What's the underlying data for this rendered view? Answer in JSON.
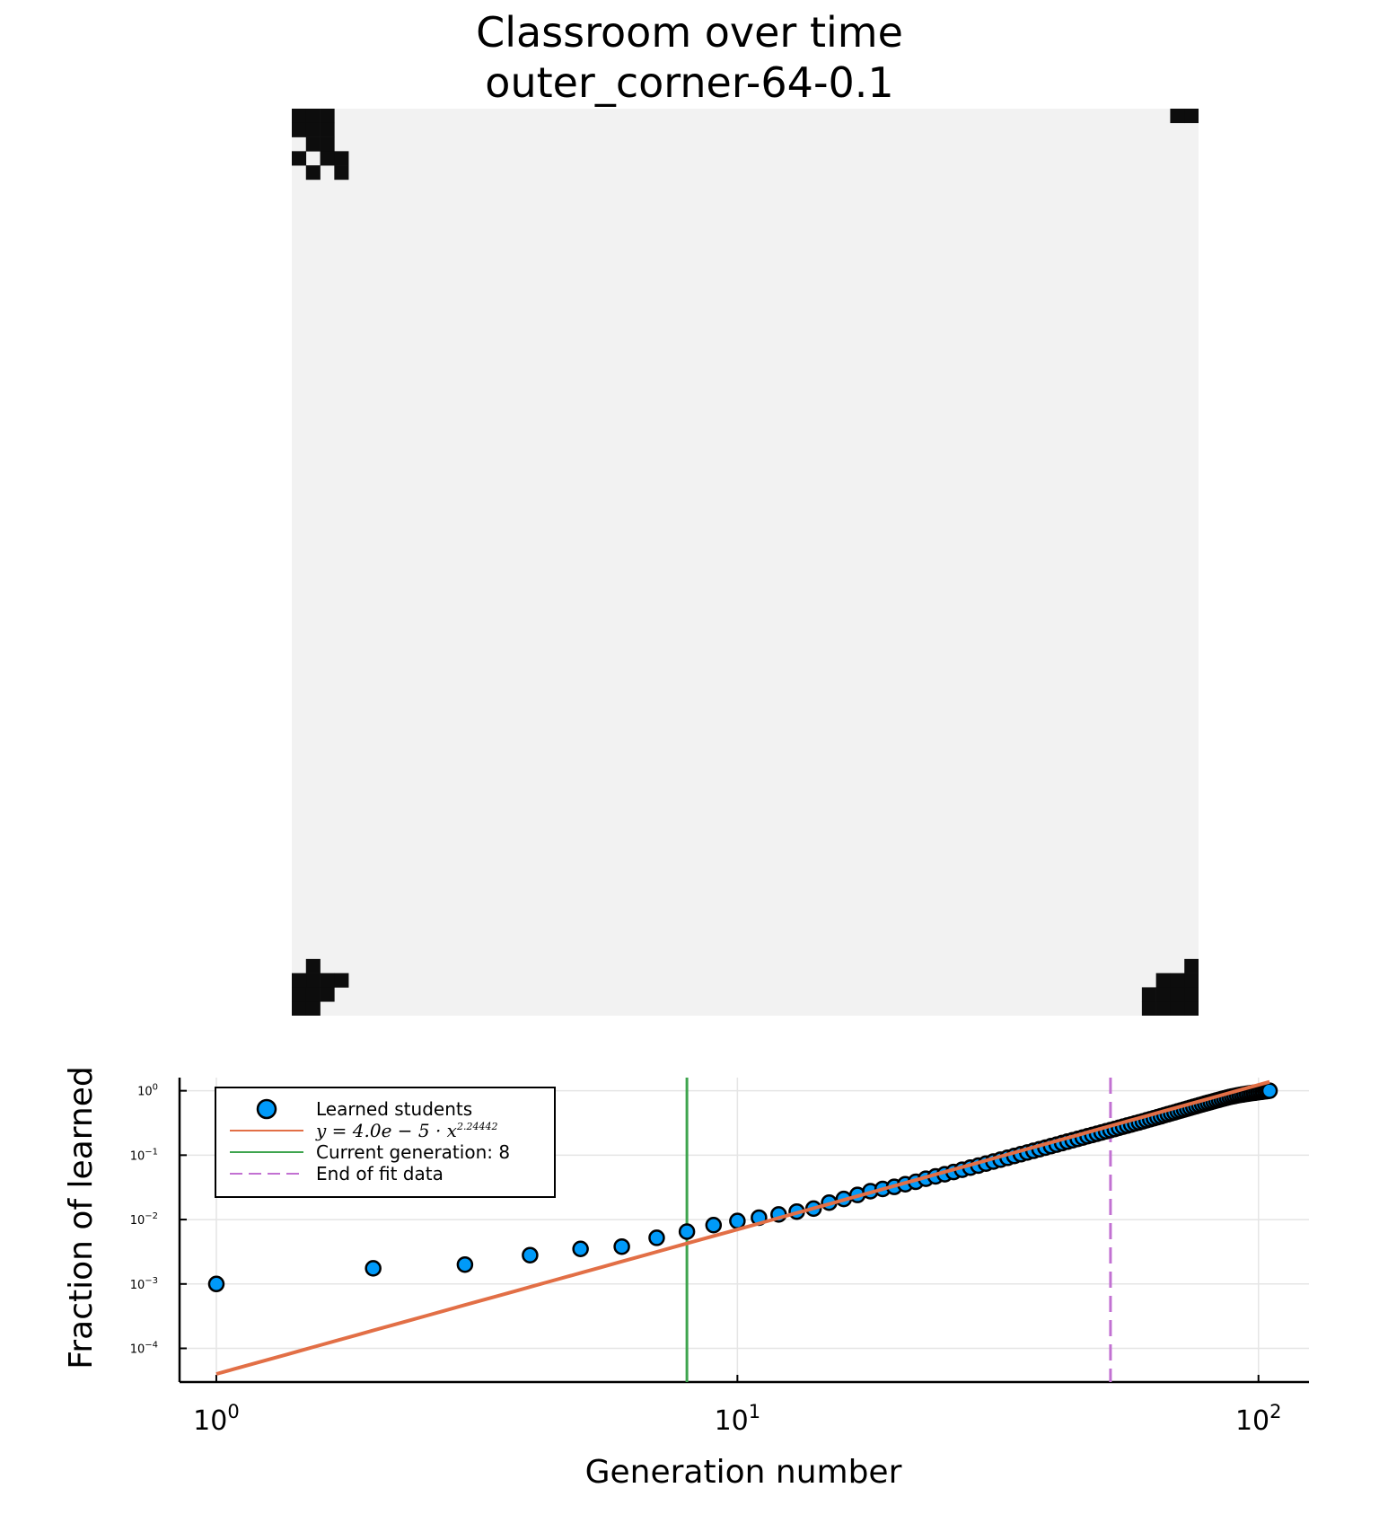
{
  "title": {
    "line1": "Classroom over time",
    "line2": "outer_corner-64-0.1"
  },
  "classroom": {
    "grid_size": 64,
    "background_color": "#f2f2f2",
    "learned_color": "#0d0d0d",
    "learned_cells": [
      [
        0,
        0
      ],
      [
        0,
        1
      ],
      [
        0,
        2
      ],
      [
        1,
        0
      ],
      [
        1,
        1
      ],
      [
        1,
        2
      ],
      [
        2,
        1
      ],
      [
        2,
        2
      ],
      [
        3,
        0
      ],
      [
        3,
        2
      ],
      [
        3,
        3
      ],
      [
        4,
        1
      ],
      [
        4,
        3
      ],
      [
        0,
        62
      ],
      [
        0,
        63
      ],
      [
        60,
        1
      ],
      [
        61,
        1
      ],
      [
        61,
        0
      ],
      [
        62,
        0
      ],
      [
        63,
        0
      ],
      [
        61,
        2
      ],
      [
        62,
        2
      ],
      [
        62,
        1
      ],
      [
        63,
        1
      ],
      [
        61,
        3
      ],
      [
        60,
        63
      ],
      [
        61,
        63
      ],
      [
        61,
        62
      ],
      [
        61,
        61
      ],
      [
        62,
        61
      ],
      [
        62,
        62
      ],
      [
        62,
        63
      ],
      [
        62,
        60
      ],
      [
        63,
        60
      ],
      [
        63,
        61
      ],
      [
        63,
        62
      ],
      [
        63,
        63
      ]
    ]
  },
  "chart_data": {
    "type": "scatter",
    "xlabel": "Generation number",
    "ylabel": "Fraction of learned",
    "xscale": "log",
    "yscale": "log",
    "xlim": [
      0.85,
      125
    ],
    "ylim": [
      3e-05,
      1.6
    ],
    "xticks": [
      1,
      10,
      100
    ],
    "xtick_labels": [
      {
        "base": "10",
        "exp": "0"
      },
      {
        "base": "10",
        "exp": "1"
      },
      {
        "base": "10",
        "exp": "2"
      }
    ],
    "yticks": [
      0.0001,
      0.001,
      0.01,
      0.1,
      1
    ],
    "ytick_labels": [
      {
        "base": "10",
        "exp": "−4"
      },
      {
        "base": "10",
        "exp": "−3"
      },
      {
        "base": "10",
        "exp": "−2"
      },
      {
        "base": "10",
        "exp": "−1"
      },
      {
        "base": "10",
        "exp": "0"
      }
    ],
    "grid": true,
    "legend_position": "top-left",
    "series": [
      {
        "name": "Learned students",
        "kind": "scatter",
        "color": "#009af9",
        "x": [
          1,
          2,
          3,
          4,
          5,
          6,
          7,
          8,
          9,
          10,
          11,
          12,
          13,
          14,
          15,
          16,
          17,
          18,
          19,
          20,
          21,
          22,
          23,
          24,
          25,
          26,
          27,
          28,
          29,
          30,
          31,
          32,
          33,
          34,
          35,
          36,
          37,
          38,
          39,
          40,
          41,
          42,
          43,
          44,
          45,
          46,
          47,
          48,
          49,
          50,
          51,
          52,
          53,
          54,
          55,
          56,
          57,
          58,
          59,
          60,
          61,
          62,
          63,
          64,
          65,
          66,
          67,
          68,
          69,
          70,
          71,
          72,
          73,
          74,
          75,
          76,
          77,
          78,
          79,
          80,
          81,
          82,
          83,
          84,
          85,
          86,
          87,
          88,
          89,
          90,
          91,
          92,
          93,
          94,
          95,
          96,
          97,
          98,
          99,
          100,
          101,
          102,
          103,
          104,
          105
        ],
        "values": [
          0.001,
          0.00175,
          0.002,
          0.0028,
          0.0035,
          0.0038,
          0.0052,
          0.0065,
          0.0082,
          0.0095,
          0.0107,
          0.012,
          0.0133,
          0.0148,
          0.0183,
          0.0209,
          0.0241,
          0.0276,
          0.0299,
          0.0322,
          0.0354,
          0.0386,
          0.0431,
          0.0468,
          0.0506,
          0.0547,
          0.0593,
          0.064,
          0.0688,
          0.0741,
          0.0796,
          0.0852,
          0.091,
          0.0973,
          0.1035,
          0.11,
          0.1167,
          0.1237,
          0.1309,
          0.1385,
          0.146,
          0.154,
          0.1622,
          0.1705,
          0.179,
          0.1878,
          0.1968,
          0.206,
          0.2154,
          0.225,
          0.235,
          0.245,
          0.255,
          0.266,
          0.277,
          0.288,
          0.299,
          0.311,
          0.323,
          0.335,
          0.348,
          0.361,
          0.374,
          0.388,
          0.402,
          0.417,
          0.432,
          0.447,
          0.462,
          0.478,
          0.494,
          0.51,
          0.527,
          0.544,
          0.561,
          0.578,
          0.596,
          0.614,
          0.632,
          0.65,
          0.668,
          0.687,
          0.706,
          0.724,
          0.743,
          0.762,
          0.781,
          0.8,
          0.815,
          0.83,
          0.845,
          0.86,
          0.872,
          0.884,
          0.896,
          0.908,
          0.92,
          0.93,
          0.94,
          0.95,
          0.96,
          0.97,
          0.98,
          0.99,
          1.0
        ]
      },
      {
        "name": "y = 4.0e − 5 · x^2.24442",
        "legend_label": {
          "lhs": "y = 4.0e − 5 · x",
          "exp": "2.24442"
        },
        "kind": "line",
        "color": "#e26f46",
        "coef": 4e-05,
        "power": 2.24442,
        "x_range": [
          1,
          105
        ]
      },
      {
        "name": "Current generation: 8",
        "kind": "vline",
        "color": "#3ea44e",
        "x": 8
      },
      {
        "name": "End of fit data",
        "kind": "vline",
        "dashed": true,
        "color": "#c271d2",
        "x": 52
      }
    ]
  }
}
